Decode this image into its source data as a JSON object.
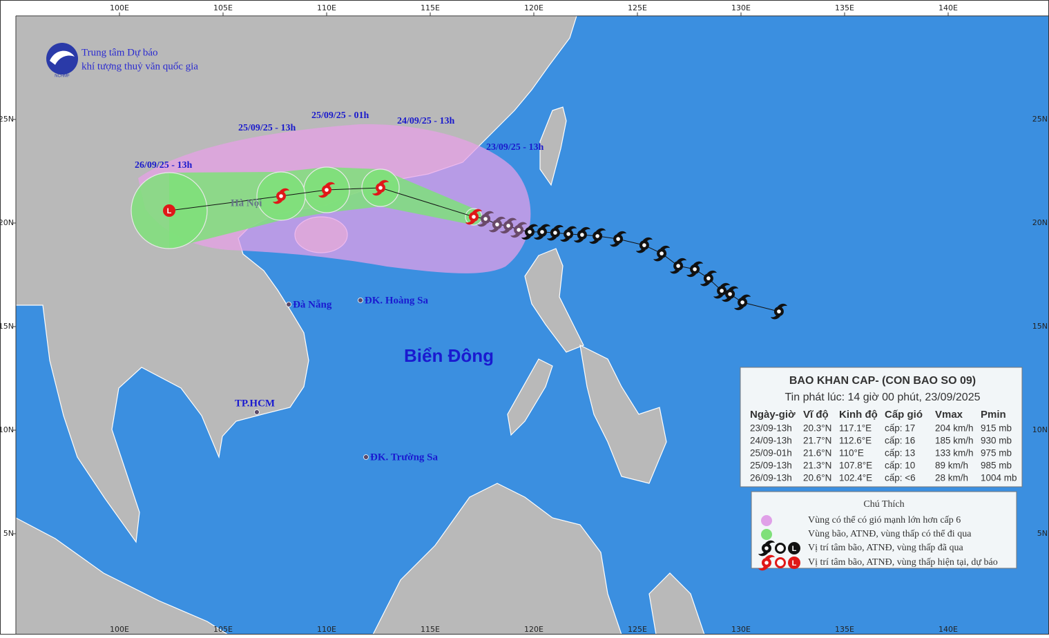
{
  "header": {
    "org_line1": "Trung tâm Dự báo",
    "org_line2": "khí tượng thuỷ văn quốc gia",
    "logo_text": "NCHMF"
  },
  "map": {
    "lon_ticks": [
      {
        "value": 100,
        "label": "100E"
      },
      {
        "value": 105,
        "label": "105E"
      },
      {
        "value": 110,
        "label": "110E"
      },
      {
        "value": 115,
        "label": "115E"
      },
      {
        "value": 120,
        "label": "120E"
      },
      {
        "value": 125,
        "label": "125E"
      },
      {
        "value": 130,
        "label": "130E"
      },
      {
        "value": 135,
        "label": "135E"
      },
      {
        "value": 140,
        "label": "140E"
      }
    ],
    "lat_ticks": [
      {
        "value": 25,
        "label": "25N"
      },
      {
        "value": 20,
        "label": "20N"
      },
      {
        "value": 15,
        "label": "15N"
      },
      {
        "value": 10,
        "label": "10N"
      },
      {
        "value": 5,
        "label": "5N"
      }
    ],
    "sea_label": "Biển Đông",
    "low_symbol": "L",
    "places": [
      {
        "name": "Hà Nội",
        "lon": 105.8,
        "lat": 21.0
      },
      {
        "name": "Đà Nẵng",
        "lon": 108.17,
        "lat": 16.07
      },
      {
        "name": "ĐK. Hoàng Sa",
        "lon": 111.63,
        "lat": 16.27
      },
      {
        "name": "TP.HCM",
        "lon": 106.63,
        "lat": 10.87
      },
      {
        "name": "ĐK. Trường Sa",
        "lon": 111.9,
        "lat": 8.7
      }
    ]
  },
  "forecast": [
    {
      "label": "23/09/25 - 13h",
      "lon": 117.1,
      "lat": 20.3
    },
    {
      "label": "24/09/25 - 13h",
      "lon": 112.6,
      "lat": 21.7
    },
    {
      "label": "25/09/25 - 01h",
      "lon": 110,
      "lat": 21.6
    },
    {
      "label": "25/09/25 - 13h",
      "lon": 107.8,
      "lat": 21.3
    },
    {
      "label": "26/09/25 - 13h",
      "lon": 102.4,
      "lat": 20.6
    }
  ],
  "past_track": {
    "lon": [
      117.67,
      118.23,
      118.77,
      119.27,
      119.8,
      120.4,
      121.03,
      121.67,
      122.33,
      123.07,
      124.07,
      125.33,
      126.17,
      126.97,
      127.77,
      128.43,
      129.07,
      129.47,
      130.07,
      131.83
    ],
    "lat": [
      20.2,
      19.93,
      19.87,
      19.67,
      19.57,
      19.57,
      19.53,
      19.47,
      19.43,
      19.37,
      19.23,
      18.93,
      18.53,
      17.93,
      17.77,
      17.33,
      16.73,
      16.57,
      16.17,
      15.73
    ]
  },
  "bulletin": {
    "title": "BAO KHAN CAP- (CON BAO SO 09)",
    "issued": "Tin phát lúc: 14 giờ 00 phút, 23/09/2025",
    "columns": [
      "Ngày-giờ",
      "Vĩ độ",
      "Kinh độ",
      "Cấp gió",
      "Vmax",
      "Pmin"
    ],
    "rows": [
      [
        "23/09-13h",
        "20.3°N",
        "117.1°E",
        "cấp: 17",
        "204 km/h",
        "915 mb"
      ],
      [
        "24/09-13h",
        "21.7°N",
        "112.6°E",
        "cấp: 16",
        "185 km/h",
        "930 mb"
      ],
      [
        "25/09-01h",
        "21.6°N",
        "110°E",
        "cấp: 13",
        "133 km/h",
        "975 mb"
      ],
      [
        "25/09-13h",
        "21.3°N",
        "107.8°E",
        "cấp: 10",
        "89 km/h",
        "985 mb"
      ],
      [
        "26/09-13h",
        "20.6°N",
        "102.4°E",
        "cấp: <6",
        "28 km/h",
        "1004 mb"
      ]
    ]
  },
  "legend": {
    "title": "Chú Thích",
    "items": [
      "Vùng có thể có gió mạnh lớn hơn cấp 6",
      "Vùng bão, ATNĐ, vùng thấp có thể đi qua",
      "Vị trí tâm bão, ATNĐ, vùng thấp đã qua",
      "Vị trí tâm bão, ATNĐ, vùng thấp hiện tại, dự báo"
    ]
  }
}
